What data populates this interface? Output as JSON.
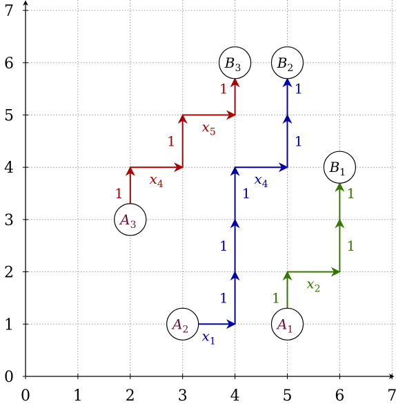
{
  "colors": {
    "red": "#aa0000",
    "blue": "#0000aa",
    "green": "#337700",
    "vertex_text": "#661133",
    "grid": "#999999",
    "axis": "#000000"
  },
  "axes": {
    "x_ticks": [
      "0",
      "1",
      "2",
      "3",
      "4",
      "5",
      "6",
      "7"
    ],
    "y_ticks": [
      "0",
      "1",
      "2",
      "3",
      "4",
      "5",
      "6",
      "7"
    ],
    "xlim": [
      0,
      7
    ],
    "ylim": [
      0,
      7
    ],
    "grid": "dotted"
  },
  "chart_data": {
    "type": "lattice-paths",
    "vertices": [
      {
        "name": "A",
        "sub": "1",
        "x": 5,
        "y": 1,
        "text_color": "#661133"
      },
      {
        "name": "A",
        "sub": "2",
        "x": 3,
        "y": 1,
        "text_color": "#661133"
      },
      {
        "name": "A",
        "sub": "3",
        "x": 2,
        "y": 3,
        "text_color": "#661133"
      },
      {
        "name": "B",
        "sub": "1",
        "x": 6,
        "y": 4,
        "text_color": "#000000"
      },
      {
        "name": "B",
        "sub": "2",
        "x": 5,
        "y": 6,
        "text_color": "#000000"
      },
      {
        "name": "B",
        "sub": "3",
        "x": 4,
        "y": 6,
        "text_color": "#000000"
      }
    ],
    "paths": [
      {
        "color": "green",
        "steps": [
          {
            "from": [
              5,
              1
            ],
            "to": [
              5,
              2
            ],
            "label": "1"
          },
          {
            "from": [
              5,
              2
            ],
            "to": [
              6,
              2
            ],
            "label": "x",
            "sub": "2"
          },
          {
            "from": [
              6,
              2
            ],
            "to": [
              6,
              3
            ],
            "label": "1"
          },
          {
            "from": [
              6,
              3
            ],
            "to": [
              6,
              4
            ],
            "label": "1"
          }
        ]
      },
      {
        "color": "blue",
        "steps": [
          {
            "from": [
              3,
              1
            ],
            "to": [
              4,
              1
            ],
            "label": "x",
            "sub": "1"
          },
          {
            "from": [
              4,
              1
            ],
            "to": [
              4,
              2
            ],
            "label": "1"
          },
          {
            "from": [
              4,
              2
            ],
            "to": [
              4,
              3
            ],
            "label": "1"
          },
          {
            "from": [
              4,
              3
            ],
            "to": [
              4,
              4
            ],
            "label": "1"
          },
          {
            "from": [
              4,
              4
            ],
            "to": [
              5,
              4
            ],
            "label": "x",
            "sub": "4"
          },
          {
            "from": [
              5,
              4
            ],
            "to": [
              5,
              5
            ],
            "label": "1"
          },
          {
            "from": [
              5,
              5
            ],
            "to": [
              5,
              6
            ],
            "label": "1"
          }
        ]
      },
      {
        "color": "red",
        "steps": [
          {
            "from": [
              2,
              3
            ],
            "to": [
              2,
              4
            ],
            "label": "1"
          },
          {
            "from": [
              2,
              4
            ],
            "to": [
              3,
              4
            ],
            "label": "x",
            "sub": "4"
          },
          {
            "from": [
              3,
              4
            ],
            "to": [
              3,
              5
            ],
            "label": "1"
          },
          {
            "from": [
              3,
              5
            ],
            "to": [
              4,
              5
            ],
            "label": "x",
            "sub": "5"
          },
          {
            "from": [
              4,
              5
            ],
            "to": [
              4,
              6
            ],
            "label": "1"
          }
        ]
      }
    ]
  }
}
